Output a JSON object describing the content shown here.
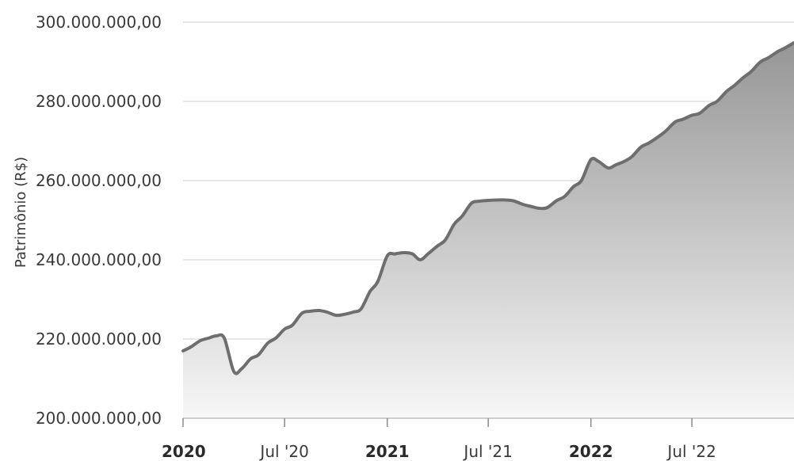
{
  "chart_data": {
    "type": "area",
    "ylabel": "Patrimônio (R$)",
    "ylim": [
      200000000,
      300000000
    ],
    "xlim": [
      "2020-01-01",
      "2022-12-31"
    ],
    "grid": true,
    "y_ticks": [
      {
        "value": 200000000,
        "label": "200.000.000,00"
      },
      {
        "value": 220000000,
        "label": "220.000.000,00"
      },
      {
        "value": 240000000,
        "label": "240.000.000,00"
      },
      {
        "value": 260000000,
        "label": "260.000.000,00"
      },
      {
        "value": 280000000,
        "label": "280.000.000,00"
      },
      {
        "value": 300000000,
        "label": "300.000.000,00"
      }
    ],
    "x_ticks": [
      {
        "date": "2020-01-01",
        "label": "2020",
        "major": true
      },
      {
        "date": "2020-07-01",
        "label": "Jul '20",
        "major": false
      },
      {
        "date": "2021-01-01",
        "label": "2021",
        "major": true
      },
      {
        "date": "2021-07-01",
        "label": "Jul '21",
        "major": false
      },
      {
        "date": "2022-01-01",
        "label": "2022",
        "major": true
      },
      {
        "date": "2022-07-01",
        "label": "Jul '22",
        "major": false
      }
    ],
    "colors": {
      "line": "#6e6e6e",
      "fill_top": "#969696",
      "fill_bottom": "#f7f7f7"
    },
    "series": [
      {
        "x": [
          "2020-01-01",
          "2020-01-15",
          "2020-02-01",
          "2020-02-15",
          "2020-03-01",
          "2020-03-15",
          "2020-04-01",
          "2020-04-15",
          "2020-05-01",
          "2020-05-15",
          "2020-06-01",
          "2020-06-15",
          "2020-07-01",
          "2020-07-15",
          "2020-08-01",
          "2020-08-15",
          "2020-09-01",
          "2020-09-15",
          "2020-10-01",
          "2020-10-15",
          "2020-11-01",
          "2020-11-15",
          "2020-12-01",
          "2020-12-15",
          "2021-01-01",
          "2021-01-15",
          "2021-02-01",
          "2021-02-15",
          "2021-03-01",
          "2021-03-15",
          "2021-04-01",
          "2021-04-15",
          "2021-05-01",
          "2021-05-15",
          "2021-06-01",
          "2021-06-15",
          "2021-07-01",
          "2021-07-15",
          "2021-08-01",
          "2021-08-15",
          "2021-09-01",
          "2021-09-15",
          "2021-10-01",
          "2021-10-15",
          "2021-11-01",
          "2021-11-15",
          "2021-12-01",
          "2021-12-15",
          "2022-01-01",
          "2022-01-15",
          "2022-02-01",
          "2022-02-15",
          "2022-03-01",
          "2022-03-15",
          "2022-04-01",
          "2022-04-15",
          "2022-05-01",
          "2022-05-15",
          "2022-06-01",
          "2022-06-15",
          "2022-07-01",
          "2022-07-15",
          "2022-08-01",
          "2022-08-15",
          "2022-09-01",
          "2022-09-15",
          "2022-10-01",
          "2022-10-15",
          "2022-11-01",
          "2022-11-15",
          "2022-12-01",
          "2022-12-15",
          "2022-12-31"
        ],
        "values": [
          217000000,
          218000000,
          219600000,
          220200000,
          220800000,
          220200000,
          211800000,
          212500000,
          215000000,
          216000000,
          219000000,
          220200000,
          222500000,
          223500000,
          226500000,
          227000000,
          227200000,
          226800000,
          226000000,
          226200000,
          226800000,
          227600000,
          232000000,
          234500000,
          241000000,
          241500000,
          241800000,
          241500000,
          240000000,
          241500000,
          243500000,
          245000000,
          249000000,
          251000000,
          254300000,
          254800000,
          255000000,
          255100000,
          255100000,
          254900000,
          254000000,
          253500000,
          253000000,
          253200000,
          255000000,
          256000000,
          258500000,
          260000000,
          265300000,
          264800000,
          263200000,
          264000000,
          264800000,
          266000000,
          268500000,
          269500000,
          271000000,
          272500000,
          274800000,
          275500000,
          276500000,
          277000000,
          279000000,
          280000000,
          282500000,
          284000000,
          286000000,
          287500000,
          290000000,
          291000000,
          292500000,
          293500000,
          294800000
        ]
      }
    ]
  }
}
